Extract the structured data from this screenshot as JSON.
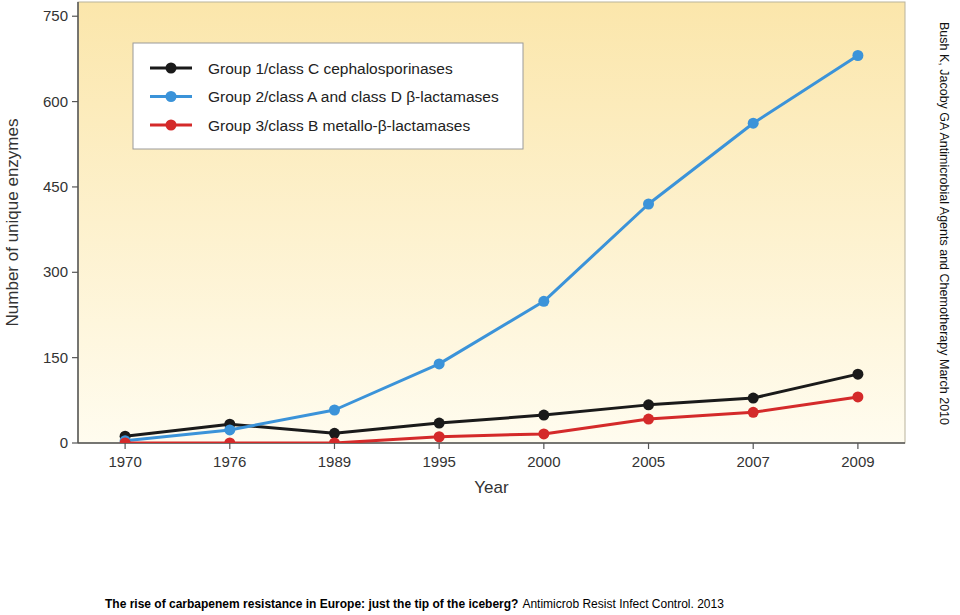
{
  "chart_data": {
    "type": "line",
    "x_label": "Year",
    "y_label": "Number of unique enzymes",
    "annotations": [
      "Bush K, Jacoby GA Antimicrobial Agents and Chemotherapy March 2010",
      "The rise of carbapenem resistance in Europe: just the tip of the iceberg?",
      "Antimicrob Resist Infect Control. 2013"
    ],
    "categories": [
      "1970",
      "1976",
      "1989",
      "1995",
      "2000",
      "2005",
      "2007",
      "2009"
    ],
    "series": [
      {
        "name": "Group 1/class C cephalosporinases",
        "color": "#1a1a1a",
        "marker": "circle",
        "values": [
          12,
          33,
          17,
          35,
          49,
          67,
          79,
          121
        ]
      },
      {
        "name": "Group 2/class A and class D β-lactamases",
        "color": "#3b93d9",
        "marker": "circle",
        "values": [
          4,
          23,
          58,
          139,
          249,
          420,
          562,
          681
        ]
      },
      {
        "name": "Group 3/class B metallo-β-lactamases",
        "color": "#d42a2a",
        "marker": "circle",
        "values": [
          0,
          0,
          0,
          11,
          16,
          42,
          54,
          81
        ]
      }
    ],
    "ylim": [
      0,
      775
    ],
    "yticks": [
      0,
      150,
      300,
      450,
      600,
      750
    ],
    "grid": false,
    "legend": "top-left"
  }
}
